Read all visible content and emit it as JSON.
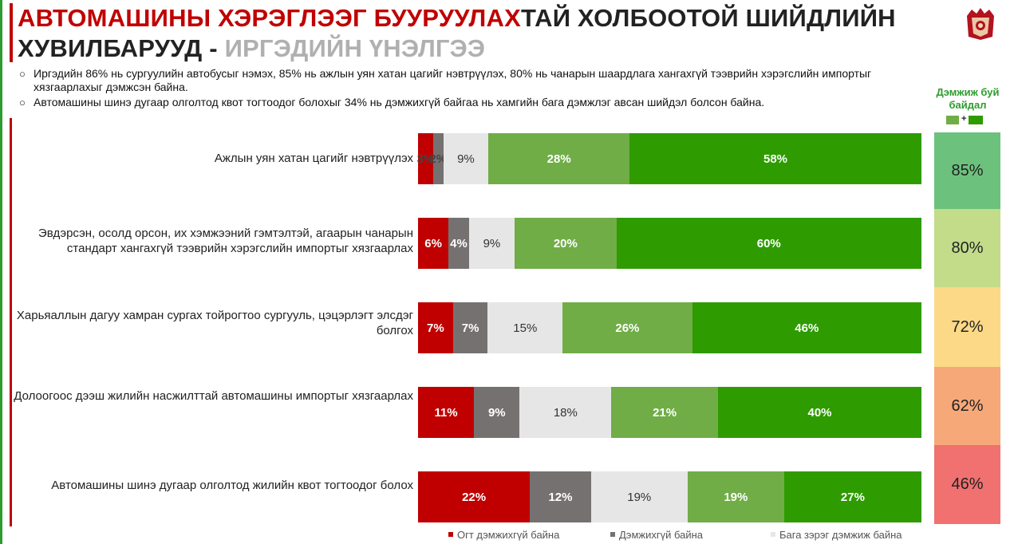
{
  "title": {
    "part1": "АВТОМАШИНЫ ХЭРЭГЛЭЭГ БУУРУУЛАХ",
    "part2": "ТАЙ ХОЛБООТОЙ ШИЙДЛИЙН",
    "part3": "ХУВИЛБАРУУД - ",
    "part4": "ИРГЭДИЙН ҮНЭЛГЭЭ"
  },
  "bullets": [
    "Иргэдийн 86% нь сургуулийн автобусыг нэмэх, 85% нь ажлын уян хатан цагийг нэвтрүүлэх, 80% нь чанарын шаардлага хангахгүй тээврийн хэрэгслийн импортыг хязгаарлахыг дэмжсэн байна.",
    "Автомашины шинэ дугаар олголтод квот тогтоодог болохыг 34% нь дэмжихгүй байгаа нь хамгийн бага дэмжлэг авсан шийдэл болсон байна."
  ],
  "support_header": {
    "line1": "Дэмжиж буй",
    "line2": "байдал",
    "plus": "+"
  },
  "colors": {
    "strongly_oppose": "#c00000",
    "oppose": "#767171",
    "somewhat_support": "#e7e6e6",
    "support": "#70ad47",
    "strongly_support": "#2e9b00"
  },
  "chart_data": {
    "type": "bar",
    "orientation": "horizontal",
    "stacked": true,
    "categories": [
      "Ажлын уян хатан цагийг нэвтрүүлэх",
      "Эвдэрсэн, осолд орсон, их хэмжээний гэмтэлтэй, агаарын чанарын стандарт хангахгүй тээврийн хэрэгслийн импортыг хязгаарлах",
      "Харьяаллын дагуу хамран сургах тойрогтоо сургууль, цэцэрлэгт элсдэг болгох",
      "Долоогоос дээш жилийн насжилттай автомашины импортыг хязгаарлах",
      "Автомашины шинэ дугаар олголтод жилийн квот тогтоодог болох"
    ],
    "series": [
      {
        "name": "Огт дэмжихгүй байна",
        "values": [
          3,
          6,
          7,
          11,
          22
        ],
        "labels": [
          "3%",
          "6%",
          "7%",
          "11%",
          "22%"
        ]
      },
      {
        "name": "Дэмжихгүй байна",
        "values": [
          2,
          4,
          7,
          9,
          12
        ],
        "labels": [
          "2%",
          "4%",
          "7%",
          "9%",
          "12%"
        ]
      },
      {
        "name": "Бага зэрэг дэмжиж байна",
        "values": [
          9,
          9,
          15,
          18,
          19
        ],
        "labels": [
          "9%",
          "9%",
          "15%",
          "18%",
          "19%"
        ]
      },
      {
        "name": "",
        "values": [
          28,
          20,
          26,
          21,
          19
        ],
        "labels": [
          "28%",
          "20%",
          "26%",
          "21%",
          "19%"
        ]
      },
      {
        "name": "",
        "values": [
          58,
          60,
          46,
          40,
          27
        ],
        "labels": [
          "58%",
          "60%",
          "46%",
          "40%",
          "27%"
        ]
      }
    ],
    "support_totals": [
      "85%",
      "80%",
      "72%",
      "62%",
      "46%"
    ],
    "support_colors": [
      "#6cc27d",
      "#c2dc8a",
      "#fbd986",
      "#f6a878",
      "#f07170"
    ],
    "legend_position": "bottom",
    "grid": false
  }
}
